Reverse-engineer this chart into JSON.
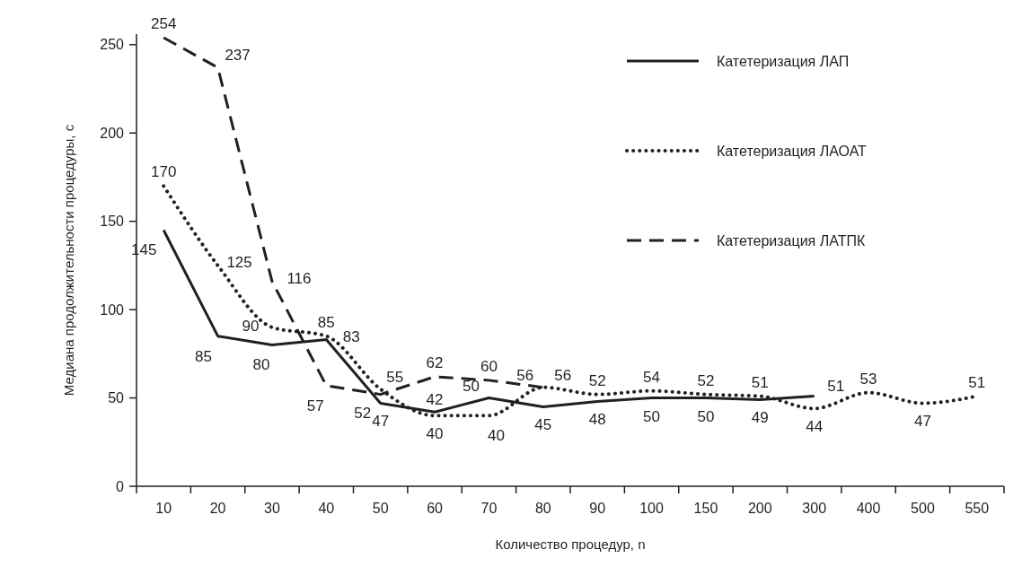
{
  "chart_data": {
    "type": "line",
    "xlabel": "Количество процедур, n",
    "ylabel": "Медиана продолжительности процедуры, с",
    "categories": [
      "10",
      "20",
      "30",
      "40",
      "50",
      "60",
      "70",
      "80",
      "90",
      "100",
      "150",
      "200",
      "300",
      "400",
      "500",
      "550"
    ],
    "series": [
      {
        "name": "Катетеризация ЛАП",
        "color": "#231f20",
        "line_style": "solid",
        "values": [
          145,
          85,
          80,
          83,
          47,
          42,
          50,
          45,
          48,
          50,
          50,
          49,
          51,
          null,
          null,
          null
        ]
      },
      {
        "name": "Катетеризация ЛАОАТ",
        "color": "#231f20",
        "line_style": "dotted",
        "values": [
          170,
          125,
          90,
          85,
          55,
          40,
          40,
          56,
          52,
          54,
          52,
          51,
          44,
          53,
          47,
          51
        ]
      },
      {
        "name": "Катетеризация ЛАТПК",
        "color": "#231f20",
        "line_style": "dashed",
        "values": [
          254,
          237,
          116,
          57,
          52,
          62,
          60,
          56,
          null,
          null,
          null,
          null,
          null,
          null,
          null,
          null
        ]
      }
    ],
    "ylim": [
      0,
      256
    ],
    "yticks": [
      0,
      50,
      100,
      150,
      200,
      250
    ],
    "grid": false,
    "legend": "top right",
    "marker": "none",
    "data_labels": true
  }
}
